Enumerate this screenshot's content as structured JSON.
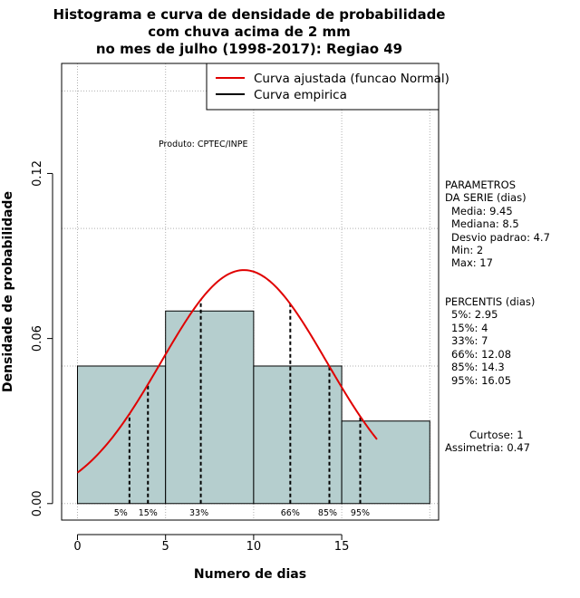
{
  "title_lines": [
    "Histograma e curva de densidade de probabilidade",
    "com chuva acima de 2 mm",
    "no mes de julho (1998-2017): Regiao 49"
  ],
  "credit": "Produto: CPTEC/INPE",
  "legend": {
    "items": [
      {
        "label": "Curva ajustada (funcao Normal)",
        "color": "#e00000"
      },
      {
        "label": "Curva empirica",
        "color": "#000000"
      }
    ]
  },
  "params": {
    "header": [
      "PARAMETROS",
      "DA SERIE (dias)"
    ],
    "lines": [
      "Media: 9.45",
      "Mediana: 8.5",
      "Desvio padrao: 4.7",
      "Min: 2",
      "Max: 17"
    ]
  },
  "percentis": {
    "header": "PERCENTIS (dias)",
    "lines": [
      "5%: 2.95",
      "15%: 4",
      "33%: 7",
      "66%: 12.08",
      "85%: 14.3",
      "95%: 16.05"
    ]
  },
  "stats": {
    "curtose": "Curtose: 1",
    "assimetria": "Assimetria: 0.47"
  },
  "colors": {
    "bar_fill": "#b5cece",
    "normal_curve": "#e00000"
  },
  "chart_data": {
    "type": "bar",
    "title": "Histograma e curva de densidade de probabilidade com chuva acima de 2 mm no mes de julho (1998-2017): Regiao 49",
    "xlabel": "Numero de dias",
    "ylabel": "Densidade de probabilidade",
    "xlim": [
      -0.9,
      20.5
    ],
    "ylim": [
      -0.006,
      0.16
    ],
    "x_ticks": [
      0,
      5,
      10,
      15
    ],
    "y_ticks": [
      0.0,
      0.06,
      0.12
    ],
    "y_tick_labels": [
      "0.00",
      "0.06",
      "0.12"
    ],
    "bins": [
      {
        "start": 0,
        "end": 5,
        "density": 0.05
      },
      {
        "start": 5,
        "end": 10,
        "density": 0.07
      },
      {
        "start": 10,
        "end": 15,
        "density": 0.05
      },
      {
        "start": 15,
        "end": 20,
        "density": 0.03
      }
    ],
    "normal_fit": {
      "mean": 9.45,
      "sd": 4.7,
      "x_range": [
        0,
        17
      ]
    },
    "percentiles": [
      {
        "label": "5%",
        "value": 2.95
      },
      {
        "label": "15%",
        "value": 4
      },
      {
        "label": "33%",
        "value": 7
      },
      {
        "label": "66%",
        "value": 12.08
      },
      {
        "label": "85%",
        "value": 14.3
      },
      {
        "label": "95%",
        "value": 16.05
      }
    ],
    "grid": true,
    "legend_position": "top-right"
  }
}
